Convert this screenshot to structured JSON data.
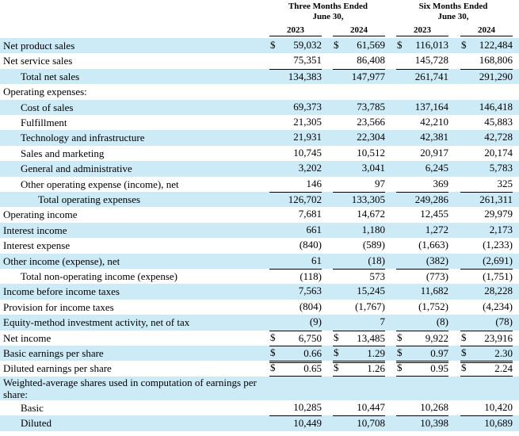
{
  "header": {
    "groups": [
      [
        "Three Months Ended",
        "June 30,"
      ],
      [
        "Six Months Ended",
        "June 30,"
      ]
    ],
    "years": [
      "2023",
      "2024",
      "2023",
      "2024"
    ]
  },
  "currency": "$",
  "rows": [
    {
      "label": "Net product sales",
      "level": 0,
      "dollar": true,
      "cells": [
        "59,032",
        "61,569",
        "116,013",
        "122,484"
      ]
    },
    {
      "label": "Net service sales",
      "level": 0,
      "cells": [
        "75,351",
        "86,408",
        "145,728",
        "168,806"
      ]
    },
    {
      "label": "Total net sales",
      "level": 1,
      "total": true,
      "cells": [
        "134,383",
        "147,977",
        "261,741",
        "291,290"
      ]
    },
    {
      "label": "Operating expenses:",
      "level": 0,
      "cells": []
    },
    {
      "label": "Cost of sales",
      "level": 1,
      "cells": [
        "69,373",
        "73,785",
        "137,164",
        "146,418"
      ]
    },
    {
      "label": "Fulfillment",
      "level": 1,
      "cells": [
        "21,305",
        "23,566",
        "42,210",
        "45,883"
      ]
    },
    {
      "label": "Technology and infrastructure",
      "level": 1,
      "cells": [
        "21,931",
        "22,304",
        "42,381",
        "42,728"
      ]
    },
    {
      "label": "Sales and marketing",
      "level": 1,
      "cells": [
        "10,745",
        "10,512",
        "20,917",
        "20,174"
      ]
    },
    {
      "label": "General and administrative",
      "level": 1,
      "cells": [
        "3,202",
        "3,041",
        "6,245",
        "5,783"
      ]
    },
    {
      "label": "Other operating expense (income), net",
      "level": 1,
      "cells": [
        "146",
        "97",
        "369",
        "325"
      ]
    },
    {
      "label": "Total operating expenses",
      "level": 2,
      "total": true,
      "cells": [
        "126,702",
        "133,305",
        "249,286",
        "261,311"
      ]
    },
    {
      "label": "Operating income",
      "level": 0,
      "cells": [
        "7,681",
        "14,672",
        "12,455",
        "29,979"
      ]
    },
    {
      "label": "Interest income",
      "level": 0,
      "cells": [
        "661",
        "1,180",
        "1,272",
        "2,173"
      ]
    },
    {
      "label": "Interest expense",
      "level": 0,
      "cells": [
        "(840)",
        "(589)",
        "(1,663)",
        "(1,233)"
      ]
    },
    {
      "label": "Other income (expense), net",
      "level": 0,
      "cells": [
        "61",
        "(18)",
        "(382)",
        "(2,691)"
      ]
    },
    {
      "label": "Total non-operating income (expense)",
      "level": 1,
      "total": true,
      "cells": [
        "(118)",
        "573",
        "(773)",
        "(1,751)"
      ]
    },
    {
      "label": "Income before income taxes",
      "level": 0,
      "cells": [
        "7,563",
        "15,245",
        "11,682",
        "28,228"
      ]
    },
    {
      "label": "Provision for income taxes",
      "level": 0,
      "cells": [
        "(804)",
        "(1,767)",
        "(1,752)",
        "(4,234)"
      ]
    },
    {
      "label": "Equity-method investment activity, net of tax",
      "level": 0,
      "cells": [
        "(9)",
        "7",
        "(8)",
        "(78)"
      ]
    },
    {
      "label": "Net income",
      "level": 0,
      "dollar": true,
      "total": true,
      "cells": [
        "6,750",
        "13,485",
        "9,922",
        "23,916"
      ]
    },
    {
      "label": "Basic earnings per share",
      "level": 0,
      "dollar": true,
      "total": true,
      "cells": [
        "0.66",
        "1.29",
        "0.97",
        "2.30"
      ]
    },
    {
      "label": "Diluted earnings per share",
      "level": 0,
      "dollar": true,
      "total": true,
      "cells": [
        "0.65",
        "1.26",
        "0.95",
        "2.24"
      ]
    },
    {
      "label": "Weighted-average shares used in computation of earnings per share:",
      "level": 0,
      "cells": []
    },
    {
      "label": "Basic",
      "level": 1,
      "cells": [
        "10,285",
        "10,447",
        "10,268",
        "10,420"
      ]
    },
    {
      "label": "Diluted",
      "level": 1,
      "total": true,
      "cells": [
        "10,449",
        "10,708",
        "10,398",
        "10,689"
      ]
    }
  ]
}
